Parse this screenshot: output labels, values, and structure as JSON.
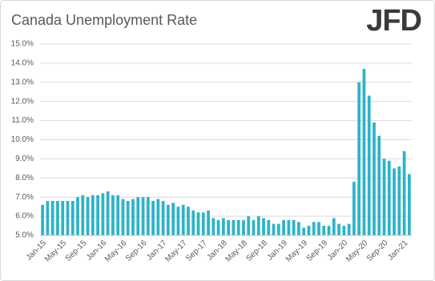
{
  "chart_data": {
    "type": "bar",
    "title": "Canada Unemployment Rate",
    "logo": "JFD",
    "categories": [
      "Jan-15",
      null,
      null,
      null,
      "May-15",
      null,
      null,
      null,
      "Sep-15",
      null,
      null,
      null,
      "Jan-16",
      null,
      null,
      null,
      "May-16",
      null,
      null,
      null,
      "Sep-16",
      null,
      null,
      null,
      "Jan-17",
      null,
      null,
      null,
      "May-17",
      null,
      null,
      null,
      "Sep-17",
      null,
      null,
      null,
      "Jan-18",
      null,
      null,
      null,
      "May-18",
      null,
      null,
      null,
      "Sep-18",
      null,
      null,
      null,
      "Jan-19",
      null,
      null,
      null,
      "May-19",
      null,
      null,
      null,
      "Sep-19",
      null,
      null,
      null,
      "Jan-20",
      null,
      null,
      null,
      "May-20",
      null,
      null,
      null,
      "Sep-20",
      null,
      null,
      null,
      "Jan-21",
      null
    ],
    "values": [
      6.6,
      6.8,
      6.8,
      6.8,
      6.8,
      6.8,
      6.8,
      7.0,
      7.1,
      7.0,
      7.1,
      7.1,
      7.2,
      7.3,
      7.1,
      7.1,
      6.9,
      6.8,
      6.9,
      7.0,
      7.0,
      7.0,
      6.8,
      6.9,
      6.8,
      6.6,
      6.7,
      6.5,
      6.6,
      6.5,
      6.3,
      6.2,
      6.2,
      6.3,
      5.9,
      5.8,
      5.9,
      5.8,
      5.8,
      5.8,
      5.8,
      6.0,
      5.8,
      6.0,
      5.9,
      5.8,
      5.6,
      5.6,
      5.8,
      5.8,
      5.8,
      5.7,
      5.4,
      5.5,
      5.7,
      5.7,
      5.5,
      5.5,
      5.9,
      5.6,
      5.5,
      5.6,
      7.8,
      13.0,
      13.7,
      12.3,
      10.9,
      10.2,
      9.0,
      8.9,
      8.5,
      8.6,
      9.4,
      8.2
    ],
    "color": "#2eb3c9",
    "ylim": [
      5,
      15
    ],
    "yticks": [
      {
        "value": 5,
        "label": "5.0%"
      },
      {
        "value": 6,
        "label": "6.0%"
      },
      {
        "value": 7,
        "label": "7.0%"
      },
      {
        "value": 8,
        "label": "8.0%"
      },
      {
        "value": 9,
        "label": "9.0%"
      },
      {
        "value": 10,
        "label": "10.0%"
      },
      {
        "value": 11,
        "label": "11.0%"
      },
      {
        "value": 12,
        "label": "12.0%"
      },
      {
        "value": 13,
        "label": "13.0%"
      },
      {
        "value": 14,
        "label": "14.0%"
      },
      {
        "value": 15,
        "label": "15.0%"
      }
    ],
    "grid": true
  }
}
